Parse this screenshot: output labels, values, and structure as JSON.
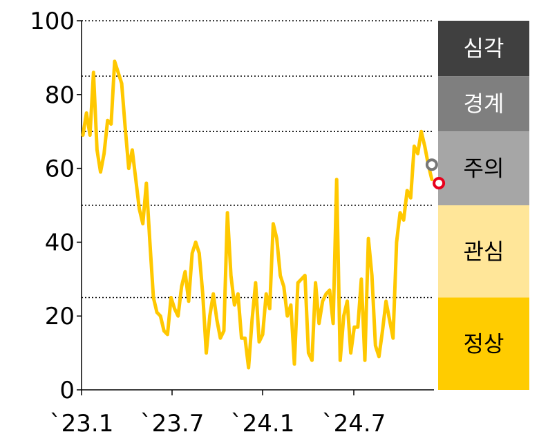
{
  "chart_data": {
    "type": "line",
    "title": "",
    "xlabel": "",
    "ylabel": "",
    "ylim": [
      0,
      100
    ],
    "yticks": [
      0,
      20,
      40,
      60,
      80,
      100
    ],
    "xticks": [
      "`23.1",
      "`23.7",
      "`24.1",
      "`24.7"
    ],
    "threshold_lines": [
      25,
      50,
      70,
      85,
      100
    ],
    "grid": "dotted horizontal threshold lines",
    "line_color": "#FFC800",
    "series": [
      {
        "values": [
          69,
          75,
          69,
          86,
          65,
          59,
          64,
          73,
          72,
          89,
          86,
          83,
          71,
          60,
          65,
          57,
          49,
          45,
          56,
          40,
          25,
          21,
          20,
          16,
          15,
          25,
          22,
          20,
          28,
          32,
          24,
          37,
          40,
          37,
          26,
          10,
          20,
          26,
          19,
          14,
          16,
          48,
          31,
          23,
          26,
          14,
          14,
          6,
          19,
          29,
          13,
          15,
          26,
          22,
          45,
          41,
          31,
          28,
          20,
          23,
          7,
          29,
          30,
          31,
          10,
          8,
          29,
          18,
          24,
          26,
          27,
          18,
          57,
          8,
          20,
          24,
          10,
          17,
          17,
          30,
          8,
          41,
          31,
          12,
          9,
          16,
          24,
          19,
          14,
          40,
          48,
          46,
          54,
          52,
          66,
          64,
          70,
          66,
          61,
          57
        ]
      }
    ],
    "markers": [
      {
        "x_index": 99,
        "value": 61,
        "color": "#777777"
      },
      {
        "x_index": 101,
        "value": 56,
        "color": "#E8001C"
      }
    ],
    "bands": [
      {
        "label": "심각",
        "from": 85,
        "to": 100,
        "color": "#404040",
        "text_color": "#FFFFFF"
      },
      {
        "label": "경계",
        "from": 70,
        "to": 85,
        "color": "#7F7F7F",
        "text_color": "#FFFFFF"
      },
      {
        "label": "주의",
        "from": 50,
        "to": 70,
        "color": "#A6A6A6",
        "text_color": "#000000"
      },
      {
        "label": "관심",
        "from": 25,
        "to": 50,
        "color": "#FFE699",
        "text_color": "#000000"
      },
      {
        "label": "정상",
        "from": 0,
        "to": 25,
        "color": "#FFCC00",
        "text_color": "#000000"
      }
    ]
  }
}
